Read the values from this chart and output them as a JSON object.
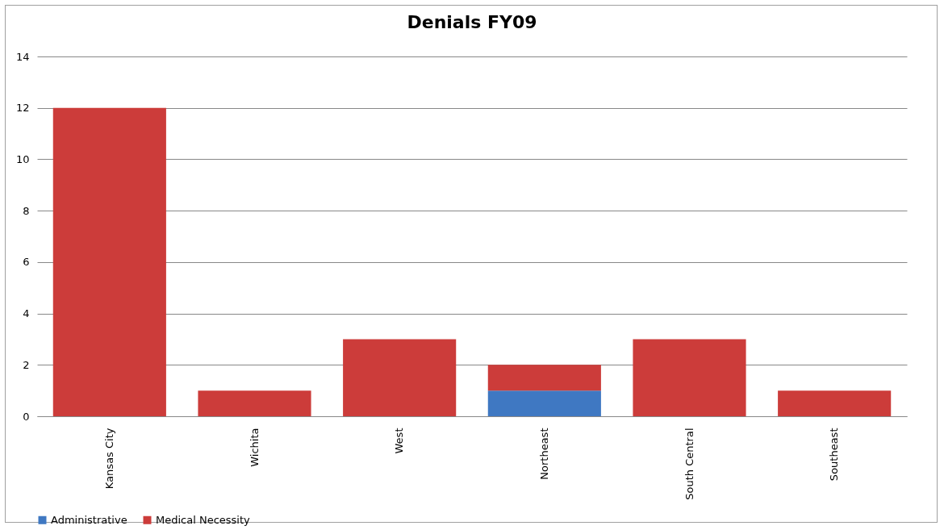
{
  "chart_data": {
    "type": "bar",
    "title": "Denials FY09",
    "stacked": true,
    "categories": [
      "Kansas City",
      "Wichita",
      "West",
      "Northeast",
      "South Central",
      "Southeast"
    ],
    "series": [
      {
        "name": "Administrative",
        "color": "#3f78c2",
        "values": [
          0,
          0,
          0,
          1,
          0,
          0
        ]
      },
      {
        "name": "Medical Necessity",
        "color": "#cc3c3a",
        "values": [
          12,
          1,
          3,
          1,
          3,
          1
        ]
      }
    ],
    "ylim": [
      0,
      14
    ],
    "yticks": [
      0,
      2,
      4,
      6,
      8,
      10,
      12,
      14
    ],
    "grid": "y",
    "legend": "bottom"
  }
}
